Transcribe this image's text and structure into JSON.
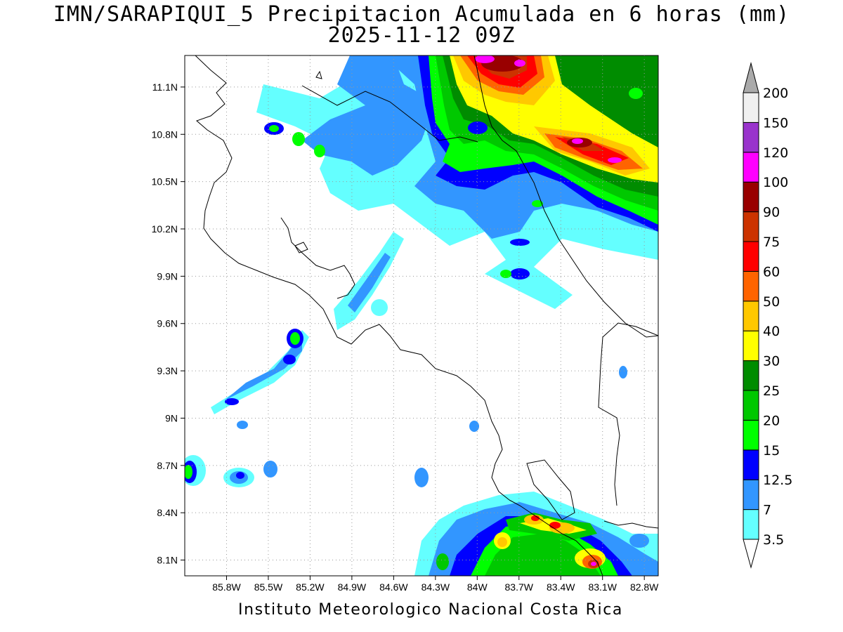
{
  "title": {
    "line1": "IMN/SARAPIQUI_5 Precipitacion Acumulada en 6 horas (mm)",
    "line2": "2025-11-12 09Z"
  },
  "footer": "Instituto Meteorologico Nacional Costa Rica",
  "map": {
    "lon_range": [
      -86.1,
      -82.7
    ],
    "lat_range": [
      8.0,
      11.3
    ],
    "lat_ticks": [
      {
        "value": 11.1,
        "label": "11.1N"
      },
      {
        "value": 10.8,
        "label": "10.8N"
      },
      {
        "value": 10.5,
        "label": "10.5N"
      },
      {
        "value": 10.2,
        "label": "10.2N"
      },
      {
        "value": 9.9,
        "label": "9.9N"
      },
      {
        "value": 9.6,
        "label": "9.6N"
      },
      {
        "value": 9.3,
        "label": "9.3N"
      },
      {
        "value": 9.0,
        "label": "9N"
      },
      {
        "value": 8.7,
        "label": "8.7N"
      },
      {
        "value": 8.4,
        "label": "8.4N"
      },
      {
        "value": 8.1,
        "label": "8.1N"
      }
    ],
    "lon_ticks": [
      {
        "value": -85.8,
        "label": "85.8W"
      },
      {
        "value": -85.5,
        "label": "85.5W"
      },
      {
        "value": -85.2,
        "label": "85.2W"
      },
      {
        "value": -84.9,
        "label": "84.9W"
      },
      {
        "value": -84.6,
        "label": "84.6W"
      },
      {
        "value": -84.3,
        "label": "84.3W"
      },
      {
        "value": -84.0,
        "label": "84W"
      },
      {
        "value": -83.7,
        "label": "83.7W"
      },
      {
        "value": -83.4,
        "label": "83.4W"
      },
      {
        "value": -83.1,
        "label": "83.1W"
      },
      {
        "value": -82.8,
        "label": "82.8W"
      }
    ],
    "grid": "dotted"
  },
  "colorbar": {
    "levels": [
      {
        "value": "3.5",
        "color": "#64ffff"
      },
      {
        "value": "7",
        "color": "#3296ff"
      },
      {
        "value": "12.5",
        "color": "#0000ff"
      },
      {
        "value": "15",
        "color": "#00ff00"
      },
      {
        "value": "20",
        "color": "#00c800"
      },
      {
        "value": "25",
        "color": "#008c00"
      },
      {
        "value": "30",
        "color": "#ffff00"
      },
      {
        "value": "40",
        "color": "#ffc800"
      },
      {
        "value": "50",
        "color": "#ff6400"
      },
      {
        "value": "60",
        "color": "#ff0000"
      },
      {
        "value": "75",
        "color": "#cc3300"
      },
      {
        "value": "90",
        "color": "#990000"
      },
      {
        "value": "100",
        "color": "#ff00ff"
      },
      {
        "value": "120",
        "color": "#9933cc"
      },
      {
        "value": "150",
        "color": "#f0f0f0"
      },
      {
        "value": "200",
        "color": ""
      }
    ],
    "below_color": "#ffffff",
    "above_color": "#aaaaaa"
  }
}
